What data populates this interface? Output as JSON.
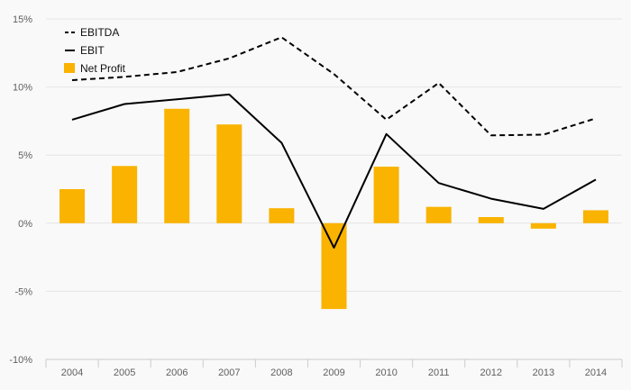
{
  "chart_data": {
    "type": "bar",
    "categories": [
      "2004",
      "2005",
      "2006",
      "2007",
      "2008",
      "2009",
      "2010",
      "2011",
      "2012",
      "2013",
      "2014"
    ],
    "ylim": [
      -10,
      15
    ],
    "yticks": [
      -10,
      -5,
      0,
      5,
      10,
      15
    ],
    "ytick_suffix": "%",
    "grid": true,
    "legend_position": "top-left",
    "series": [
      {
        "name": "EBITDA",
        "kind": "line",
        "dash": "dashed",
        "color": "#000000",
        "values": [
          10.5,
          10.75,
          11.1,
          12.1,
          13.65,
          10.95,
          7.6,
          10.3,
          6.45,
          6.5,
          7.7
        ]
      },
      {
        "name": "EBIT",
        "kind": "line",
        "dash": "solid",
        "color": "#000000",
        "values": [
          7.6,
          8.75,
          9.1,
          9.45,
          5.9,
          -1.8,
          6.55,
          2.95,
          1.8,
          1.05,
          3.2
        ]
      },
      {
        "name": "Net Profit",
        "kind": "bar",
        "color": "#f9b300",
        "values": [
          2.5,
          4.2,
          8.4,
          7.25,
          1.1,
          -6.3,
          4.15,
          1.2,
          0.45,
          -0.4,
          0.95
        ]
      }
    ]
  }
}
